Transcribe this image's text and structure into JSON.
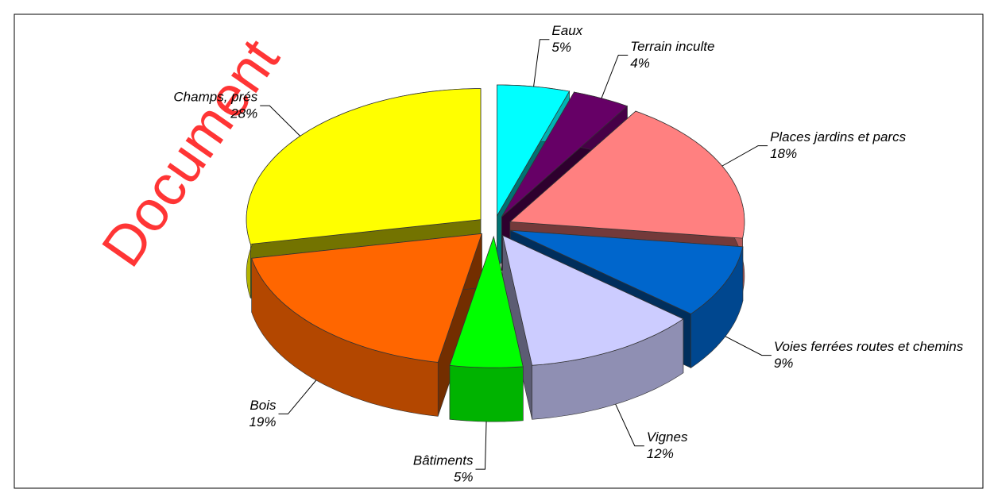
{
  "watermark": "Document",
  "chart_data": {
    "type": "pie3d",
    "categories": [
      "Eaux",
      "Terrain inculte",
      "Places jardins et parcs",
      "Voies ferrées routes et chemins",
      "Vignes",
      "Bâtiments",
      "Bois",
      "Champs, prés"
    ],
    "values": [
      5,
      4,
      18,
      9,
      12,
      5,
      19,
      28
    ],
    "value_labels": [
      "5%",
      "4%",
      "18%",
      "9%",
      "12%",
      "5%",
      "19%",
      "28%"
    ],
    "colors": [
      "#00ffff",
      "#660066",
      "#ff8080",
      "#0066cc",
      "#ccccff",
      "#00ff00",
      "#ff6600",
      "#ffff00"
    ]
  }
}
